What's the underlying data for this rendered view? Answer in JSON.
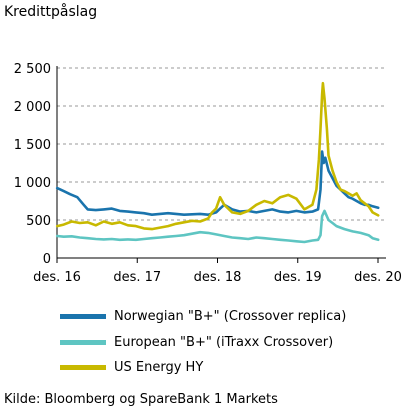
{
  "chart_data": {
    "type": "line",
    "title": "Kredittpåslag",
    "xlabel": "",
    "ylabel": "",
    "ylim": [
      0,
      2500
    ],
    "yticks": [
      0,
      500,
      1000,
      1500,
      2000,
      2500
    ],
    "ytick_labels": [
      "0",
      "500",
      "1 000",
      "1 500",
      "2 000",
      "2 500"
    ],
    "xlim": [
      2016.917,
      2020.917
    ],
    "xticks": [
      2016.917,
      2017.917,
      2018.917,
      2019.917,
      2020.917
    ],
    "xtick_labels": [
      "des. 16",
      "des. 17",
      "des. 18",
      "des. 19",
      "des. 20"
    ],
    "grid": "horizontal dashed",
    "legend_position": "below",
    "series": [
      {
        "name": "Norwegian \"B+\" (Crossover replica)",
        "color": "#1a74ad",
        "x": [
          2016.92,
          2017.0,
          2017.08,
          2017.17,
          2017.25,
          2017.3,
          2017.4,
          2017.5,
          2017.6,
          2017.7,
          2017.8,
          2017.9,
          2018.0,
          2018.1,
          2018.2,
          2018.3,
          2018.4,
          2018.5,
          2018.6,
          2018.7,
          2018.8,
          2018.9,
          2018.95,
          2019.0,
          2019.1,
          2019.2,
          2019.3,
          2019.4,
          2019.5,
          2019.6,
          2019.7,
          2019.8,
          2019.9,
          2020.0,
          2020.1,
          2020.17,
          2020.2,
          2020.21,
          2020.22,
          2020.24,
          2020.26,
          2020.3,
          2020.35,
          2020.4,
          2020.45,
          2020.5,
          2020.55,
          2020.6,
          2020.65,
          2020.7,
          2020.75,
          2020.8,
          2020.85,
          2020.92
        ],
        "values": [
          920,
          880,
          840,
          800,
          700,
          640,
          630,
          640,
          650,
          620,
          610,
          600,
          590,
          570,
          580,
          590,
          580,
          570,
          575,
          580,
          570,
          600,
          650,
          700,
          640,
          610,
          620,
          600,
          620,
          640,
          610,
          600,
          620,
          600,
          610,
          640,
          900,
          1150,
          1400,
          1250,
          1320,
          1150,
          1050,
          950,
          900,
          850,
          800,
          780,
          750,
          720,
          700,
          700,
          680,
          660
        ]
      },
      {
        "name": "European \"B+\" (iTraxx Crossover)",
        "color": "#5ec5c2",
        "x": [
          2016.92,
          2017.0,
          2017.1,
          2017.2,
          2017.3,
          2017.4,
          2017.5,
          2017.6,
          2017.7,
          2017.8,
          2017.9,
          2018.0,
          2018.1,
          2018.2,
          2018.3,
          2018.4,
          2018.5,
          2018.6,
          2018.7,
          2018.8,
          2018.9,
          2019.0,
          2019.1,
          2019.2,
          2019.3,
          2019.4,
          2019.5,
          2019.6,
          2019.7,
          2019.8,
          2019.9,
          2020.0,
          2020.1,
          2020.17,
          2020.2,
          2020.22,
          2020.25,
          2020.3,
          2020.35,
          2020.4,
          2020.5,
          2020.6,
          2020.7,
          2020.8,
          2020.85,
          2020.92
        ],
        "values": [
          290,
          280,
          285,
          270,
          260,
          250,
          245,
          250,
          240,
          245,
          240,
          250,
          260,
          270,
          280,
          290,
          300,
          320,
          340,
          330,
          310,
          290,
          270,
          260,
          250,
          270,
          260,
          250,
          240,
          230,
          220,
          210,
          230,
          240,
          300,
          550,
          620,
          500,
          460,
          420,
          380,
          350,
          330,
          300,
          260,
          240
        ]
      },
      {
        "name": "US Energy HY",
        "color": "#c8b900",
        "x": [
          2016.92,
          2017.0,
          2017.1,
          2017.2,
          2017.3,
          2017.4,
          2017.5,
          2017.6,
          2017.7,
          2017.8,
          2017.9,
          2018.0,
          2018.1,
          2018.2,
          2018.3,
          2018.4,
          2018.5,
          2018.6,
          2018.7,
          2018.8,
          2018.85,
          2018.9,
          2018.95,
          2019.0,
          2019.05,
          2019.1,
          2019.2,
          2019.3,
          2019.4,
          2019.5,
          2019.6,
          2019.7,
          2019.8,
          2019.9,
          2020.0,
          2020.1,
          2020.15,
          2020.18,
          2020.2,
          2020.22,
          2020.23,
          2020.25,
          2020.28,
          2020.3,
          2020.35,
          2020.4,
          2020.45,
          2020.5,
          2020.55,
          2020.6,
          2020.65,
          2020.7,
          2020.75,
          2020.8,
          2020.85,
          2020.92
        ],
        "values": [
          420,
          440,
          480,
          460,
          470,
          430,
          480,
          450,
          470,
          430,
          420,
          390,
          380,
          400,
          420,
          450,
          470,
          490,
          480,
          520,
          600,
          650,
          800,
          700,
          650,
          600,
          580,
          620,
          700,
          750,
          720,
          800,
          830,
          780,
          640,
          700,
          900,
          1300,
          1700,
          2150,
          2300,
          2100,
          1700,
          1350,
          1150,
          1000,
          900,
          880,
          850,
          820,
          850,
          760,
          720,
          680,
          600,
          560
        ]
      }
    ]
  },
  "source": "Kilde: Bloomberg og SpareBank 1 Markets"
}
